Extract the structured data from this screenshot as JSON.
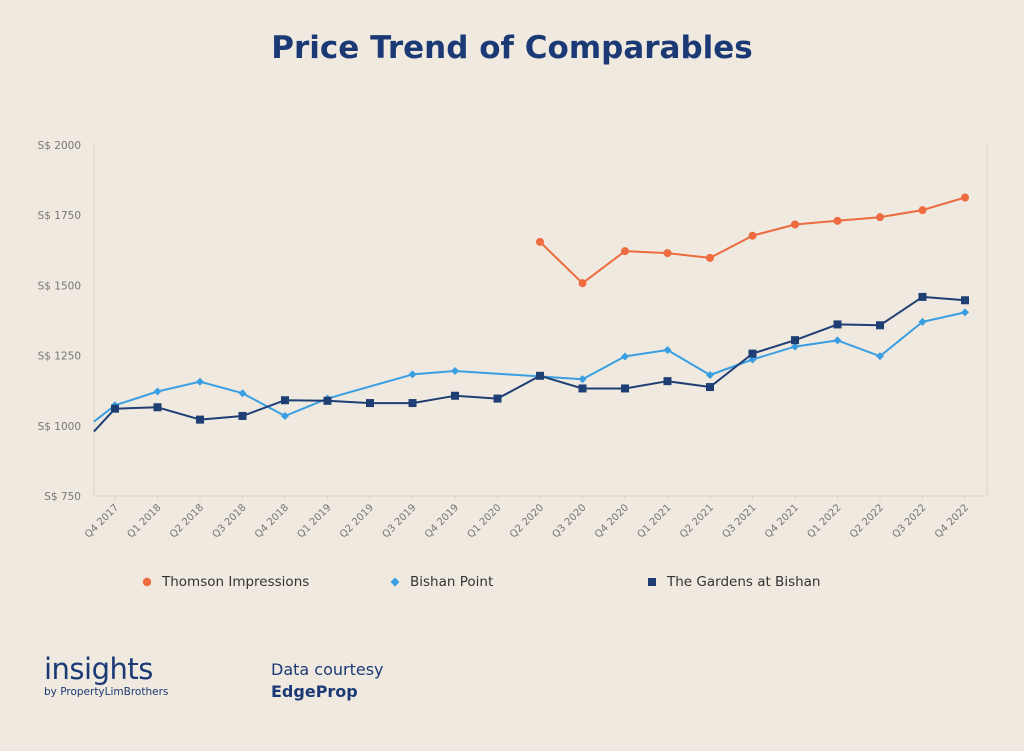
{
  "title": "Price Trend of Comparables",
  "chart_data": {
    "type": "line",
    "title": "Price Trend of Comparables",
    "xlabel": "",
    "ylabel": "",
    "ylim": [
      750,
      2000
    ],
    "yticks": [
      "S$ 2000",
      "S$ 1750",
      "S$ 1500",
      "S$ 1250",
      "S$ 1000",
      "S$ 750"
    ],
    "ytick_values": [
      2000,
      1750,
      1500,
      1250,
      1000,
      750
    ],
    "categories": [
      "Q4 2017",
      "Q1 2018",
      "Q2 2018",
      "Q3 2018",
      "Q4 2018",
      "Q1 2019",
      "Q2 2019",
      "Q3 2019",
      "Q4 2019",
      "Q1 2020",
      "Q2 2020",
      "Q3 2020",
      "Q4 2020",
      "Q1 2021",
      "Q2 2021",
      "Q3 2021",
      "Q4 2021",
      "Q1 2022",
      "Q2 2022",
      "Q3 2022",
      "Q4 2022"
    ],
    "grid": false,
    "legend_position": "bottom",
    "series": [
      {
        "name": "Thomson Impressions",
        "color": "#ee6b3f",
        "marker": "circle",
        "values": [
          null,
          null,
          null,
          null,
          null,
          null,
          null,
          null,
          null,
          null,
          1655,
          1508,
          1622,
          1615,
          1598,
          1677,
          1717,
          1730,
          1743,
          1768,
          1813
        ]
      },
      {
        "name": "Bishan Point",
        "color": "#3a9fe2",
        "marker": "diamond",
        "start_value": 1015,
        "values": [
          1073,
          1122,
          1157,
          1116,
          1035,
          1097,
          null,
          1183,
          1195,
          null,
          null,
          1166,
          1247,
          1270,
          1181,
          1236,
          1282,
          1304,
          1248,
          1370,
          1404
        ]
      },
      {
        "name": "The Gardens at Bishan",
        "color": "#1f3f74",
        "marker": "square",
        "start_value": 980,
        "values": [
          1061,
          1066,
          1022,
          1035,
          1091,
          1089,
          1081,
          1081,
          1107,
          1097,
          1178,
          1133,
          1133,
          1159,
          1138,
          1257,
          1305,
          1361,
          1358,
          1459,
          1447
        ]
      }
    ]
  },
  "footer": {
    "brand_main": "insights",
    "brand_sub": "by PropertyLimBrothers",
    "credit_label": "Data courtesy",
    "credit_source": "EdgeProp"
  }
}
